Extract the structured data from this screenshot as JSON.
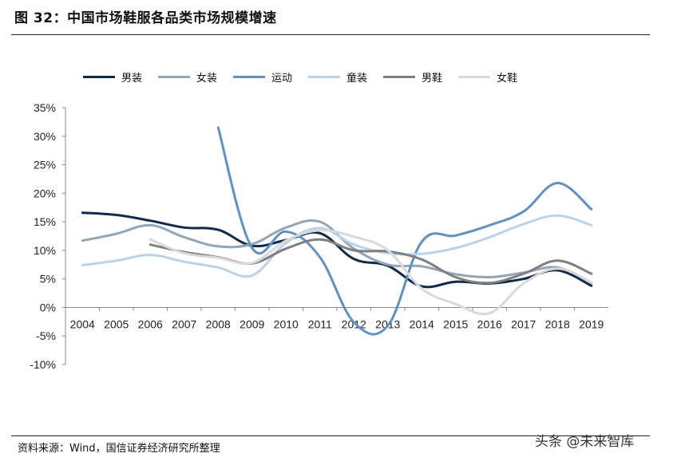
{
  "header": {
    "title": "图 32：中国市场鞋服各品类市场规模增速"
  },
  "footer": {
    "source": "资料来源：Wind，国信证券经济研究所整理",
    "watermark": "头条 @未来智库"
  },
  "chart_data": {
    "type": "line",
    "title": "图 32：中国市场鞋服各品类市场规模增速",
    "xlabel": "",
    "ylabel": "",
    "x": [
      "2004",
      "2005",
      "2006",
      "2007",
      "2008",
      "2009",
      "2010",
      "2011",
      "2012",
      "2013",
      "2014",
      "2015",
      "2016",
      "2017",
      "2018",
      "2019"
    ],
    "ylim": [
      -10,
      35
    ],
    "yticks": [
      35,
      30,
      25,
      20,
      15,
      10,
      5,
      0,
      -5,
      -10
    ],
    "ytick_labels": [
      "35%",
      "30%",
      "25%",
      "20%",
      "15%",
      "10%",
      "5%",
      "0%",
      "-5%",
      "-10%"
    ],
    "grid": false,
    "legend_position": "top",
    "series": [
      {
        "name": "男装",
        "color": "#0d2b4e",
        "values": [
          16.6,
          16.2,
          15.2,
          14.0,
          13.6,
          10.8,
          11.8,
          13.0,
          8.5,
          7.3,
          3.7,
          4.5,
          4.2,
          5.0,
          6.5,
          3.8
        ]
      },
      {
        "name": "女装",
        "color": "#93a6b8",
        "values": [
          11.7,
          12.9,
          14.4,
          12.3,
          10.7,
          11.1,
          14.0,
          15.0,
          10.3,
          7.5,
          7.2,
          5.8,
          5.3,
          6.1,
          7.0,
          4.3
        ]
      },
      {
        "name": "运动",
        "color": "#5e92c7",
        "values": [
          null,
          null,
          null,
          null,
          31.5,
          10.4,
          13.3,
          8.8,
          -2.6,
          -3.2,
          11.5,
          12.6,
          14.4,
          16.8,
          21.8,
          17.2
        ]
      },
      {
        "name": "童装",
        "color": "#b8d3ea",
        "values": [
          7.4,
          8.2,
          9.2,
          8.0,
          7.0,
          5.6,
          11.3,
          13.9,
          11.0,
          9.5,
          9.4,
          10.4,
          12.3,
          14.6,
          16.1,
          14.4
        ]
      },
      {
        "name": "男鞋",
        "color": "#7f7f7f",
        "values": [
          null,
          null,
          11.0,
          9.7,
          8.8,
          7.7,
          10.3,
          11.9,
          10.0,
          9.8,
          8.4,
          5.3,
          4.3,
          5.9,
          8.2,
          5.9
        ]
      },
      {
        "name": "女鞋",
        "color": "#d9d9d9",
        "values": [
          null,
          null,
          11.9,
          9.5,
          8.7,
          7.8,
          11.7,
          13.5,
          12.4,
          10.0,
          3.3,
          0.6,
          -1.0,
          4.2,
          6.8,
          4.4
        ]
      }
    ]
  }
}
